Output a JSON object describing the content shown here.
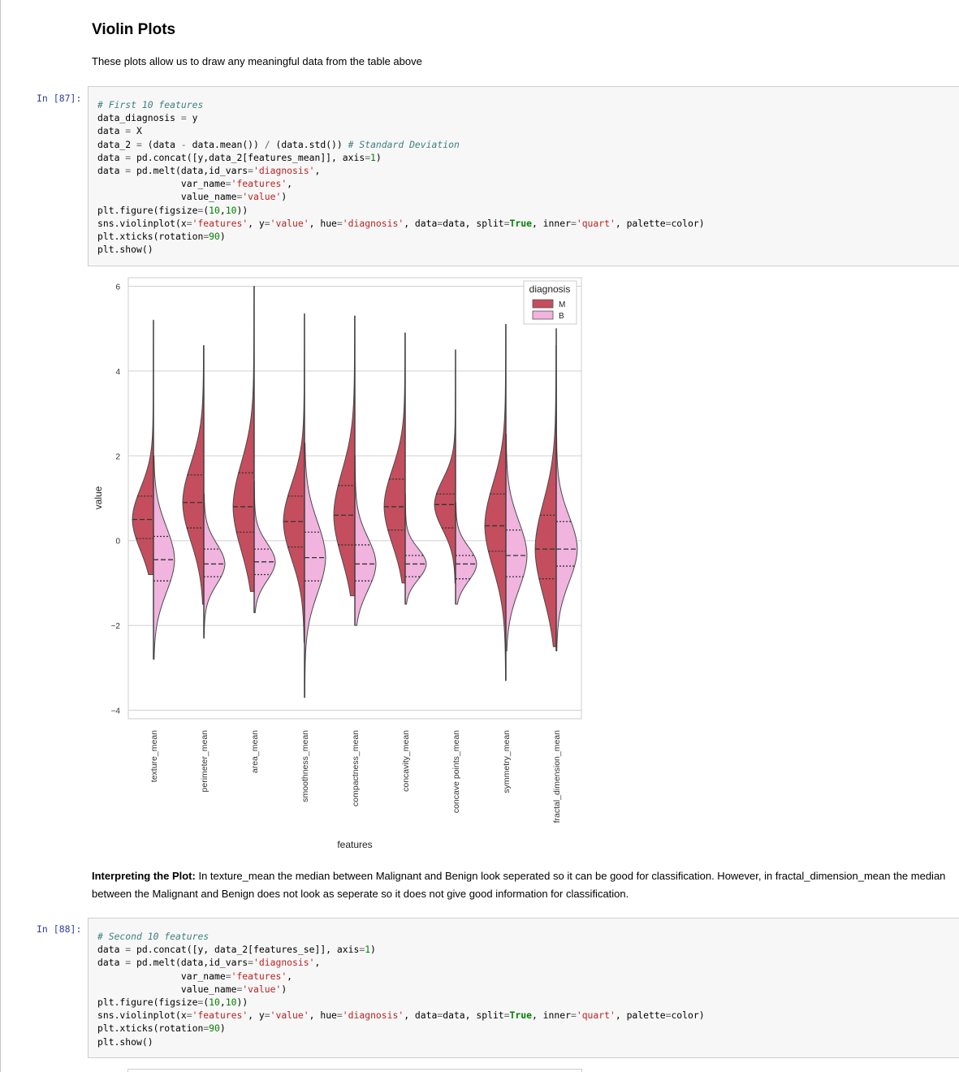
{
  "heading": "Violin Plots",
  "intro": "These plots allow us to draw any meaningful data from the table above",
  "cell1": {
    "prompt": "In [87]:",
    "lines": [
      "# First 10 features",
      "data_diagnosis = y",
      "data = X",
      "data_2 = (data - data.mean()) / (data.std()) # Standard Deviation",
      "data = pd.concat([y,data_2[features_mean]], axis=1)",
      "data = pd.melt(data,id_vars='diagnosis',",
      "               var_name='features',",
      "               value_name='value')",
      "plt.figure(figsize=(10,10))",
      "sns.violinplot(x='features', y='value', hue='diagnosis', data=data, split=True, inner='quart', palette=color)",
      "plt.xticks(rotation=90)",
      "plt.show()"
    ]
  },
  "chart_data": {
    "type": "violin",
    "xlabel": "features",
    "ylabel": "value",
    "ylim": [
      -4.2,
      6.2
    ],
    "yticks": [
      6,
      4,
      2,
      0,
      -2,
      -4
    ],
    "ytick_labels": [
      "6",
      "4",
      "2",
      "0",
      "−2",
      "−4"
    ],
    "grid": true,
    "legend": {
      "title": "diagnosis",
      "position": "top-right"
    },
    "categories": [
      "texture_mean",
      "perimeter_mean",
      "area_mean",
      "smoothness_mean",
      "compactness_mean",
      "concavity_mean",
      "concave points_mean",
      "symmetry_mean",
      "fractal_dimension_mean"
    ],
    "series": [
      {
        "name": "M",
        "color": "#c44e5e",
        "min": [
          -0.8,
          -1.5,
          -1.2,
          -2.4,
          -1.3,
          -1.0,
          -1.0,
          -3.3,
          -2.5
        ],
        "max": [
          5.2,
          4.6,
          6.0,
          5.35,
          5.3,
          4.9,
          4.5,
          5.1,
          4.6
        ],
        "q1": [
          0.05,
          0.3,
          0.2,
          -0.15,
          -0.1,
          0.25,
          0.3,
          -0.25,
          -0.9
        ],
        "median": [
          0.5,
          0.9,
          0.8,
          0.45,
          0.6,
          0.8,
          0.85,
          0.35,
          -0.2
        ],
        "q3": [
          1.05,
          1.55,
          1.6,
          1.05,
          1.3,
          1.45,
          1.1,
          1.1,
          0.6
        ]
      },
      {
        "name": "B",
        "color": "#f0b4de",
        "min": [
          -2.8,
          -2.3,
          -1.7,
          -3.7,
          -2.0,
          -1.5,
          -1.5,
          -2.6,
          -2.6
        ],
        "max": [
          2.0,
          1.1,
          1.4,
          2.3,
          2.0,
          1.1,
          0.9,
          2.5,
          5.0
        ],
        "q1": [
          -0.95,
          -0.85,
          -0.8,
          -0.95,
          -0.95,
          -0.85,
          -0.9,
          -0.85,
          -0.6
        ],
        "median": [
          -0.45,
          -0.55,
          -0.5,
          -0.4,
          -0.55,
          -0.55,
          -0.55,
          -0.35,
          -0.2
        ],
        "q3": [
          0.1,
          -0.2,
          -0.2,
          0.2,
          -0.1,
          -0.35,
          -0.35,
          0.25,
          0.45
        ]
      }
    ]
  },
  "interpretation": {
    "bold": "Interpreting the Plot:",
    "text": " In texture_mean the median between Malignant and Benign look seperated so it can be good for classification. However, in fractal_dimension_mean the median between the Malignant and Benign does not look as seperate so it does not give good information for classification."
  },
  "cell2": {
    "prompt": "In [88]:",
    "lines": [
      "# Second 10 features",
      "data = pd.concat([y, data_2[features_se]], axis=1)",
      "data = pd.melt(data,id_vars='diagnosis',",
      "               var_name='features',",
      "               value_name='value')",
      "plt.figure(figsize=(10,10))",
      "sns.violinplot(x='features', y='value', hue='diagnosis', data=data, split=True, inner='quart', palette=color)",
      "plt.xticks(rotation=90)",
      "plt.show()"
    ]
  }
}
